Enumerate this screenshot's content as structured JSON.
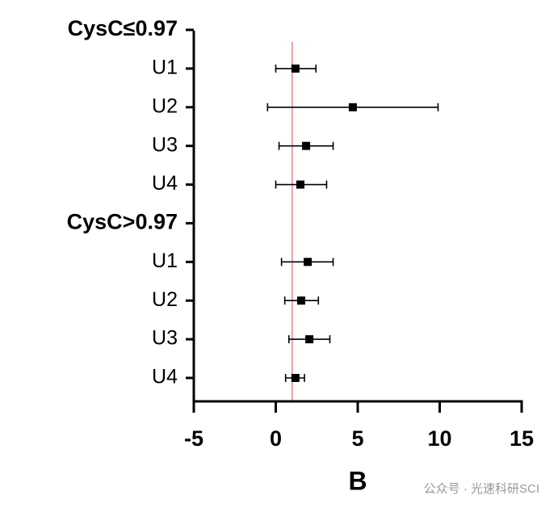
{
  "chart_data": {
    "type": "forest",
    "categories": [
      "CysC≤0.97",
      "U1",
      "U2",
      "U3",
      "U4",
      "CysC>0.97",
      "U1",
      "U2",
      "U3",
      "U4"
    ],
    "values": [
      null,
      1.2,
      4.7,
      1.85,
      1.5,
      null,
      1.95,
      1.55,
      2.05,
      1.2
    ],
    "low": [
      null,
      0.0,
      -0.5,
      0.2,
      0.0,
      null,
      0.35,
      0.55,
      0.8,
      0.6
    ],
    "high": [
      null,
      2.45,
      9.9,
      3.5,
      3.1,
      null,
      3.5,
      2.6,
      3.3,
      1.75
    ],
    "color": "#000000",
    "xlabel": "B",
    "xlim": [
      -5,
      15
    ],
    "xticks": [
      -5,
      0,
      5,
      10,
      15
    ],
    "reference_line": 1,
    "reference_color": "#e8a0a0",
    "watermark": "公众号 · 光速科研SCI"
  }
}
